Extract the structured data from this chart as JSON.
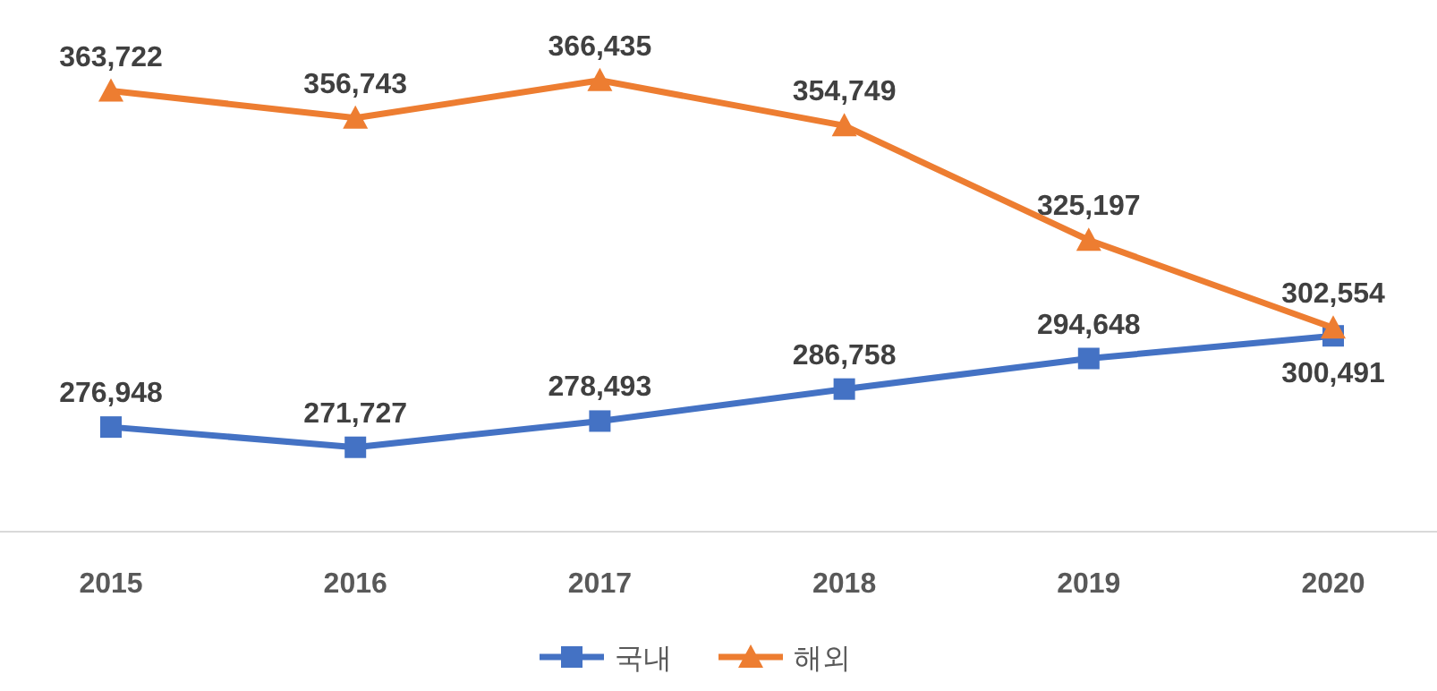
{
  "chart_data": {
    "type": "line",
    "categories": [
      "2015",
      "2016",
      "2017",
      "2018",
      "2019",
      "2020"
    ],
    "series": [
      {
        "name": "국내",
        "color": "#4472c4",
        "marker": "square",
        "values": [
          276948,
          271727,
          278493,
          286758,
          294648,
          300491
        ],
        "value_labels": [
          "276,948",
          "271,727",
          "278,493",
          "286,758",
          "294,648",
          "300,491"
        ]
      },
      {
        "name": "해외",
        "color": "#ed7d31",
        "marker": "triangle",
        "values": [
          363722,
          356743,
          366435,
          354749,
          325197,
          302554
        ],
        "value_labels": [
          "363,722",
          "356,743",
          "366,435",
          "354,749",
          "325,197",
          "302,554"
        ]
      }
    ],
    "tick_labels": "x",
    "legend": "bottom"
  }
}
